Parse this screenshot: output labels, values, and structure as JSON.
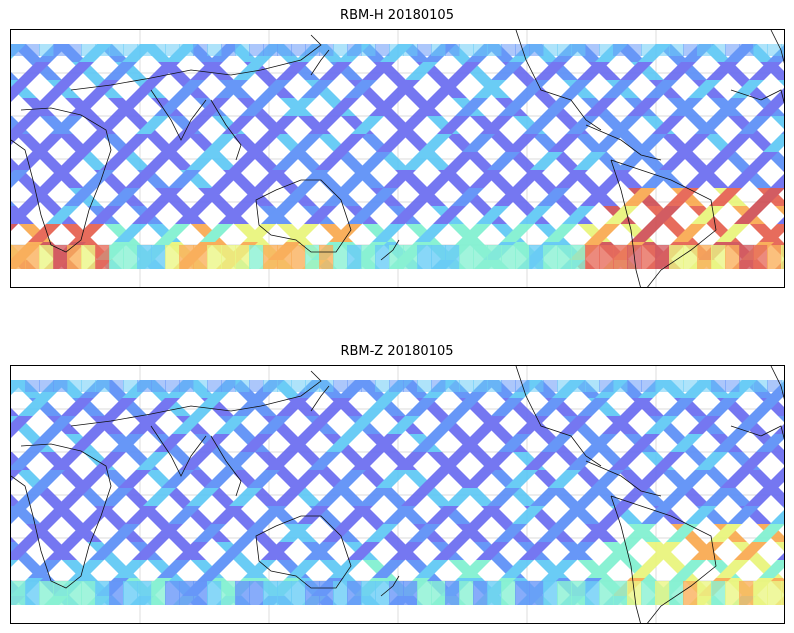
{
  "figure": {
    "panels": [
      {
        "title": "RBM-H 20180105",
        "palette": [
          "#6a6cf0",
          "#5b8ff7",
          "#5ec8f5",
          "#7ff0d0",
          "#e9f57a",
          "#f9a94f",
          "#e5604f",
          "#cf4f55"
        ],
        "hot_regions": [
          "southern-ocean-band",
          "south-america",
          "south-atlantic"
        ]
      },
      {
        "title": "RBM-Z 20180105",
        "palette": [
          "#6a6cf0",
          "#5b8ff7",
          "#5ec8f5",
          "#7ff0d0",
          "#e9f57a",
          "#f9a94f"
        ],
        "hot_regions": [
          "south-america"
        ]
      }
    ],
    "gridlines": "on",
    "projection": "plate-carree-pacific-centered"
  }
}
